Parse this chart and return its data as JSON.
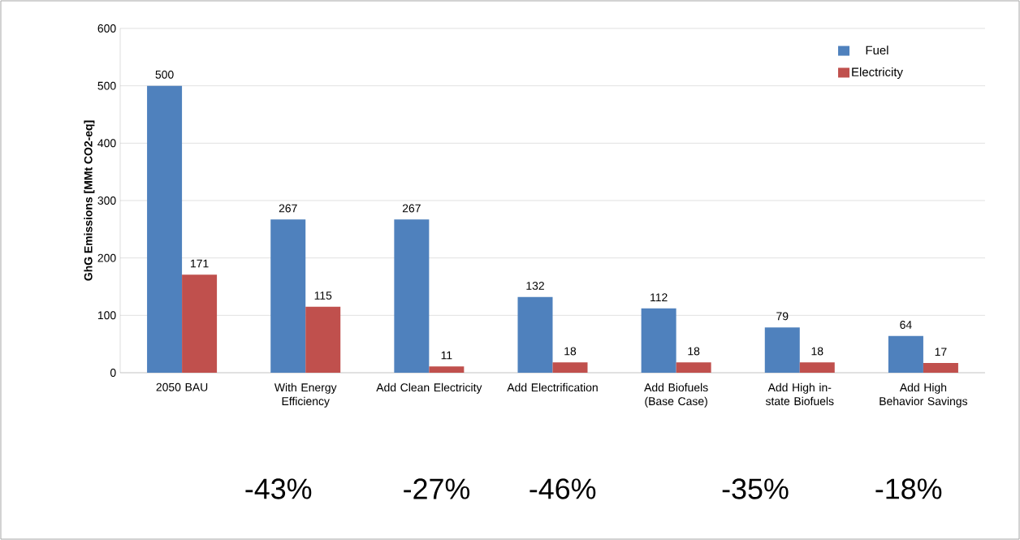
{
  "chart_data": {
    "type": "bar",
    "ylabel": "GhG Emissions [MMt CO2-eq]",
    "categories": [
      "2050 BAU",
      "With Energy Efficiency",
      "Add Clean Electricity",
      "Add Electrification",
      "Add Biofuels (Base Case)",
      "Add High in-state Biofuels",
      "Add High Behavior Savings"
    ],
    "series": [
      {
        "name": "Fuel",
        "color": "#4f81bd",
        "values": [
          500,
          267,
          267,
          132,
          112,
          79,
          64
        ]
      },
      {
        "name": "Electricity",
        "color": "#c0504d",
        "values": [
          171,
          115,
          11,
          18,
          18,
          18,
          17
        ]
      }
    ],
    "ylim": [
      0,
      600
    ],
    "yticks": [
      0,
      100,
      200,
      300,
      400,
      500,
      600
    ],
    "grid": "y",
    "legend": "top right",
    "data_labels": true,
    "annotations": [
      "-43%",
      "-27%",
      "-46%",
      "-35%",
      "-18%"
    ]
  }
}
